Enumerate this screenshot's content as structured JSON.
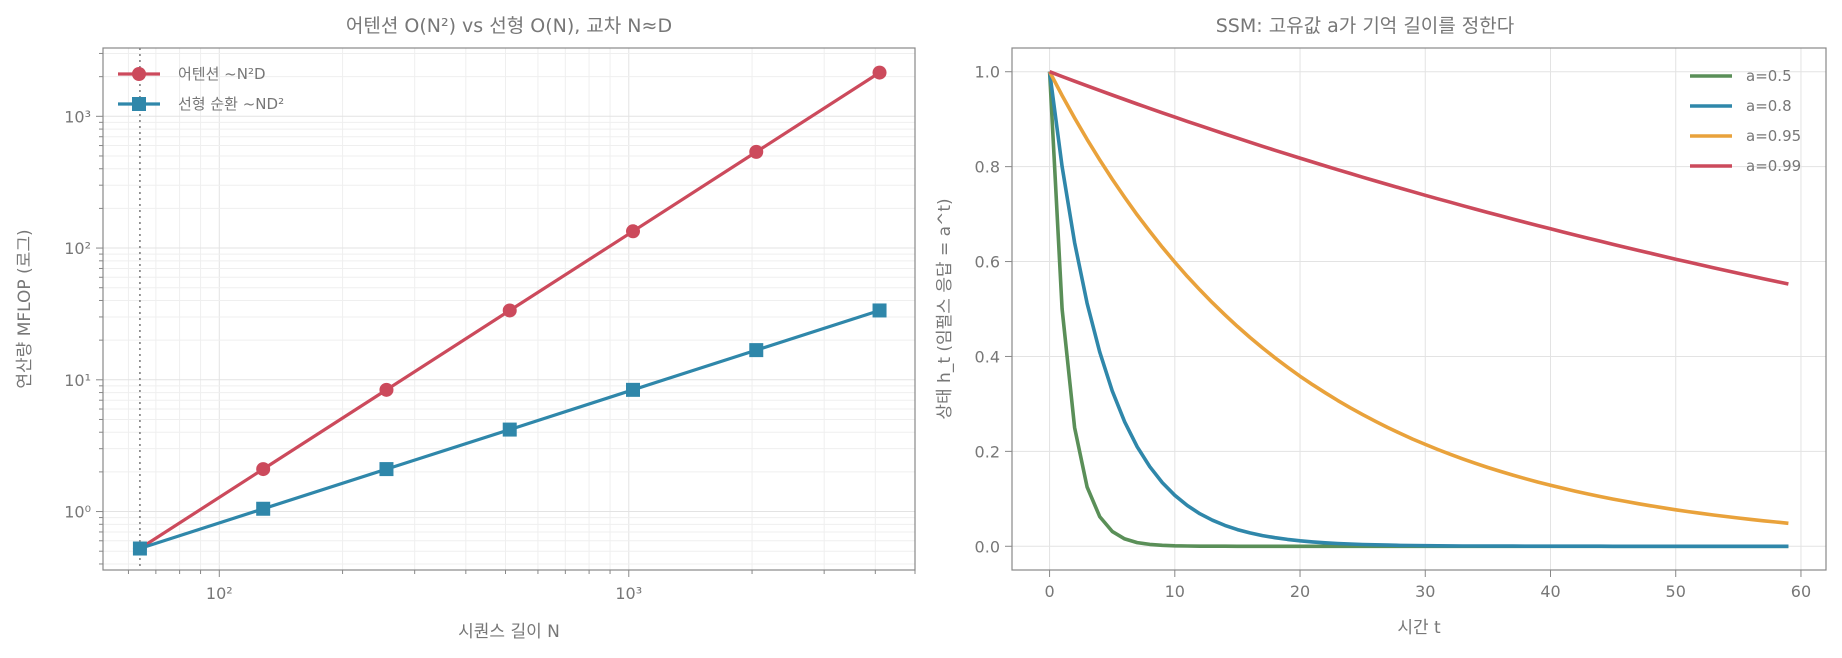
{
  "chart_data": [
    {
      "type": "line",
      "title": "어텐션 O(N²) vs 선형 O(N), 교차 N≈D",
      "xlabel": "시퀀스 길이 N",
      "ylabel": "연산량 MFLOP (로그)",
      "xscale": "log",
      "yscale": "log",
      "xlim": [
        52,
        5000
      ],
      "ylim": [
        0.36,
        3300
      ],
      "xticks": [
        {
          "value": 100,
          "label": "10²"
        },
        {
          "value": 1000,
          "label": "10³"
        }
      ],
      "yticks": [
        {
          "value": 1,
          "label": "10⁰"
        },
        {
          "value": 10,
          "label": "10¹"
        },
        {
          "value": 100,
          "label": "10²"
        },
        {
          "value": 1000,
          "label": "10³"
        }
      ],
      "grid": true,
      "legend": "upper-left",
      "crossover_x": 64,
      "x": [
        64,
        128,
        256,
        512,
        1024,
        2048,
        4096
      ],
      "series": [
        {
          "name": "어텐션 ~N²D",
          "color": "#cc4a5c",
          "marker": "circle",
          "values": [
            0.524,
            2.1,
            8.39,
            33.6,
            134,
            537,
            2147
          ]
        },
        {
          "name": "선형 순환 ~ND²",
          "color": "#2f87aa",
          "marker": "square",
          "values": [
            0.524,
            1.05,
            2.1,
            4.19,
            8.39,
            16.8,
            33.6
          ]
        }
      ]
    },
    {
      "type": "line",
      "title": "SSM: 고유값 a가 기억 길이를 정한다",
      "xlabel": "시간 t",
      "ylabel": "상태 h_t (임펄스 응답 = a^t)",
      "xscale": "linear",
      "yscale": "linear",
      "xlim": [
        -3,
        62
      ],
      "ylim": [
        -0.05,
        1.05
      ],
      "xticks": [
        0,
        10,
        20,
        30,
        40,
        50,
        60
      ],
      "yticks": [
        0.0,
        0.2,
        0.4,
        0.6,
        0.8,
        1.0
      ],
      "grid": true,
      "legend": "upper-right",
      "t_range": [
        0,
        59
      ],
      "series": [
        {
          "name": "a=0.5",
          "a": 0.5,
          "color": "#5a8f58"
        },
        {
          "name": "a=0.8",
          "a": 0.8,
          "color": "#2f87aa"
        },
        {
          "name": "a=0.95",
          "a": 0.95,
          "color": "#e9a23b"
        },
        {
          "name": "a=0.99",
          "a": 0.99,
          "color": "#cc4a5c"
        }
      ]
    }
  ]
}
